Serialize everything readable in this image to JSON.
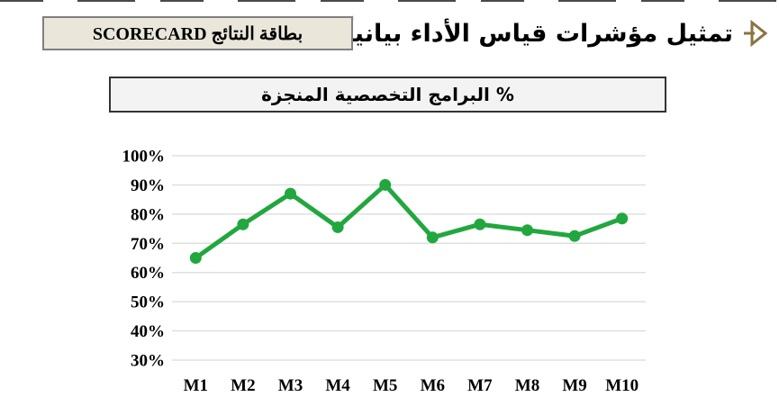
{
  "header": {
    "title": "تمثيل مؤشرات قياس الأداء بيانياً:",
    "marker_icon": "triangle-right-arrow",
    "marker_color": "#8a7340",
    "scorecard": {
      "label": "بطاقة النتائج SCORECARD",
      "background": "#eae6da",
      "border_color": "#808080"
    }
  },
  "chart": {
    "title": "% البرامج التخصصية المنجزة",
    "title_background": "#f3f3f3",
    "title_border": "#333333"
  },
  "chart_data": {
    "type": "line",
    "title": "% البرامج التخصصية المنجزة",
    "categories": [
      "M1",
      "M2",
      "M3",
      "M4",
      "M5",
      "M6",
      "M7",
      "M8",
      "M9",
      "M10"
    ],
    "values": [
      65,
      76.5,
      87,
      75.5,
      90,
      72,
      76.5,
      74.5,
      72.5,
      78.5
    ],
    "xlabel": "",
    "ylabel": "",
    "ylim": [
      30,
      100
    ],
    "ytick_step": 10,
    "ytick_labels": [
      "100%",
      "90%",
      "80%",
      "70%",
      "60%",
      "50%",
      "40%",
      "30%"
    ],
    "ytick_format": "percent",
    "grid": true,
    "grid_color": "#d9d9d9",
    "legend": false,
    "line_color": "#21a73e",
    "marker": "circle"
  }
}
